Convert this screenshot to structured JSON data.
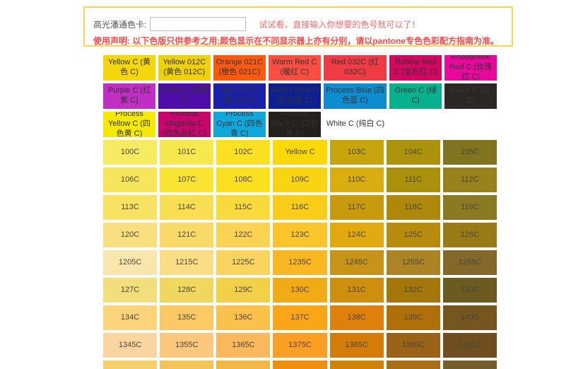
{
  "page": {
    "background": "#FFFFFF"
  },
  "header": {
    "label": "高光潘通色卡:",
    "input_value": "",
    "hint": "试试看，直接输入你想要的色号就可以了！",
    "hint_color": "#FF6A6A",
    "disclaimer": "使用声明: 以下色版只供参考之用;颜色显示在不同显示器上亦有分别，请以pantone专色色彩配方指南为准。",
    "disclaimer_color": "#FF4747",
    "box_border_color": "#FFD351"
  },
  "palette": {
    "named_text_color": "#333333",
    "numbered_text_color": "#4A463C",
    "named_rows": [
      [
        {
          "label": "Yellow C (黄色 C)",
          "color": "#F3D60B"
        },
        {
          "label": "Yellow 012C (黄色 012C)",
          "color": "#F0D009"
        },
        {
          "label": "Orange 021C (橙色 021C)",
          "color": "#FD5A0E"
        },
        {
          "label": "Warm Red C (暖红 C)",
          "color": "#FA4E42"
        },
        {
          "label": "Red 032C (红 032C)",
          "color": "#F13B44"
        },
        {
          "label": "Rubine Red C (宝石红 C)",
          "color": "#D50562"
        },
        {
          "label": "Rhodamine Red C (玫瑰红 C)",
          "color": "#E8089C"
        }
      ],
      [
        {
          "label": "Purple C (红紫 C)",
          "color": "#C02EC4"
        },
        {
          "label": "Violet C (蓝紫 C)",
          "color": "#4E0CA8"
        },
        {
          "label": "Blue 072C (蓝 072C)",
          "color": "#1B1FAA"
        },
        {
          "label": "Reflex Blue C (射光蓝 C)",
          "color": "#0E1F93"
        },
        {
          "label": "Process Blue (四色蓝 C)",
          "color": "#0E8CD0"
        },
        {
          "label": "Green C (绿 C)",
          "color": "#06B28D"
        },
        {
          "label": "Black C (黑 C)",
          "color": "#2B2725"
        }
      ],
      [
        {
          "label": "Process Yellow C (四色黄 C)",
          "color": "#F7E800"
        },
        {
          "label": "Process Magenta C (四色品红 C)",
          "color": "#C9046E"
        },
        {
          "label": "Process Cyan C (四色青 C)",
          "color": "#0FA7DC"
        },
        {
          "label": "Process Black C (四色黑 C)",
          "color": "#23201D"
        },
        {
          "label": "White C (纯白 C)",
          "color": "#FFFFFF",
          "white": true
        },
        {
          "label": "",
          "color": ""
        },
        {
          "label": "",
          "color": ""
        }
      ]
    ],
    "numbered_rows": [
      {
        "labels": [
          "100C",
          "101C",
          "102C",
          "Yellow C",
          "103C",
          "104C",
          "105C"
        ],
        "colors": [
          "#F6EB61",
          "#F7E94D",
          "#FBE122",
          "#FBD906",
          "#C7A60D",
          "#AB940B",
          "#80741F"
        ]
      },
      {
        "labels": [
          "106C",
          "107C",
          "108C",
          "109C",
          "110C",
          "111C",
          "112C"
        ],
        "colors": [
          "#F8E65A",
          "#F9E433",
          "#FAE01F",
          "#F9D410",
          "#D9AE0E",
          "#AB910B",
          "#97821C"
        ]
      },
      {
        "labels": [
          "113C",
          "114C",
          "115C",
          "116C",
          "117C",
          "118C",
          "119C"
        ],
        "colors": [
          "#F8E261",
          "#F9DE51",
          "#F9DA3D",
          "#FACE18",
          "#CA9A0E",
          "#AD880B",
          "#8A7B22"
        ]
      },
      {
        "labels": [
          "120C",
          "121C",
          "122C",
          "123C",
          "124C",
          "125C",
          "126C"
        ],
        "colors": [
          "#F9DF7F",
          "#F9DA68",
          "#FBD352",
          "#FBC52B",
          "#E3AA10",
          "#B78C0D",
          "#997B16"
        ]
      },
      {
        "labels": [
          "1205C",
          "1215C",
          "1225C",
          "1235C",
          "1245C",
          "1255C",
          "1265C"
        ],
        "colors": [
          "#F9E6AC",
          "#FADD85",
          "#FBD45F",
          "#FBB722",
          "#C89418",
          "#AC8424",
          "#84682A"
        ]
      },
      {
        "labels": [
          "127C",
          "128C",
          "129C",
          "130C",
          "131C",
          "132C",
          "133C"
        ],
        "colors": [
          "#F2DE7B",
          "#F2D75E",
          "#F2D048",
          "#F1AB15",
          "#CD8F0D",
          "#A3770A",
          "#6C5B20"
        ]
      },
      {
        "labels": [
          "134C",
          "135C",
          "136C",
          "137C",
          "138C",
          "139C",
          "140C"
        ],
        "colors": [
          "#FBD47B",
          "#FCC964",
          "#FCC14B",
          "#FBA617",
          "#DE8009",
          "#B07009",
          "#76561F"
        ]
      },
      {
        "labels": [
          "1345C",
          "1355C",
          "1365C",
          "1375C",
          "1385C",
          "1395C",
          "1405C"
        ],
        "colors": [
          "#FBD5A0",
          "#FCC87E",
          "#FCB85D",
          "#FB9F24",
          "#D57B07",
          "#9A6318",
          "#6F4E20"
        ]
      }
    ],
    "partial_row_colors": [
      "#F4CF6B",
      "#F3C45A",
      "#F2B843",
      "#EF8F0E",
      "#D08209",
      "#A96F15",
      "#735D2B"
    ]
  }
}
